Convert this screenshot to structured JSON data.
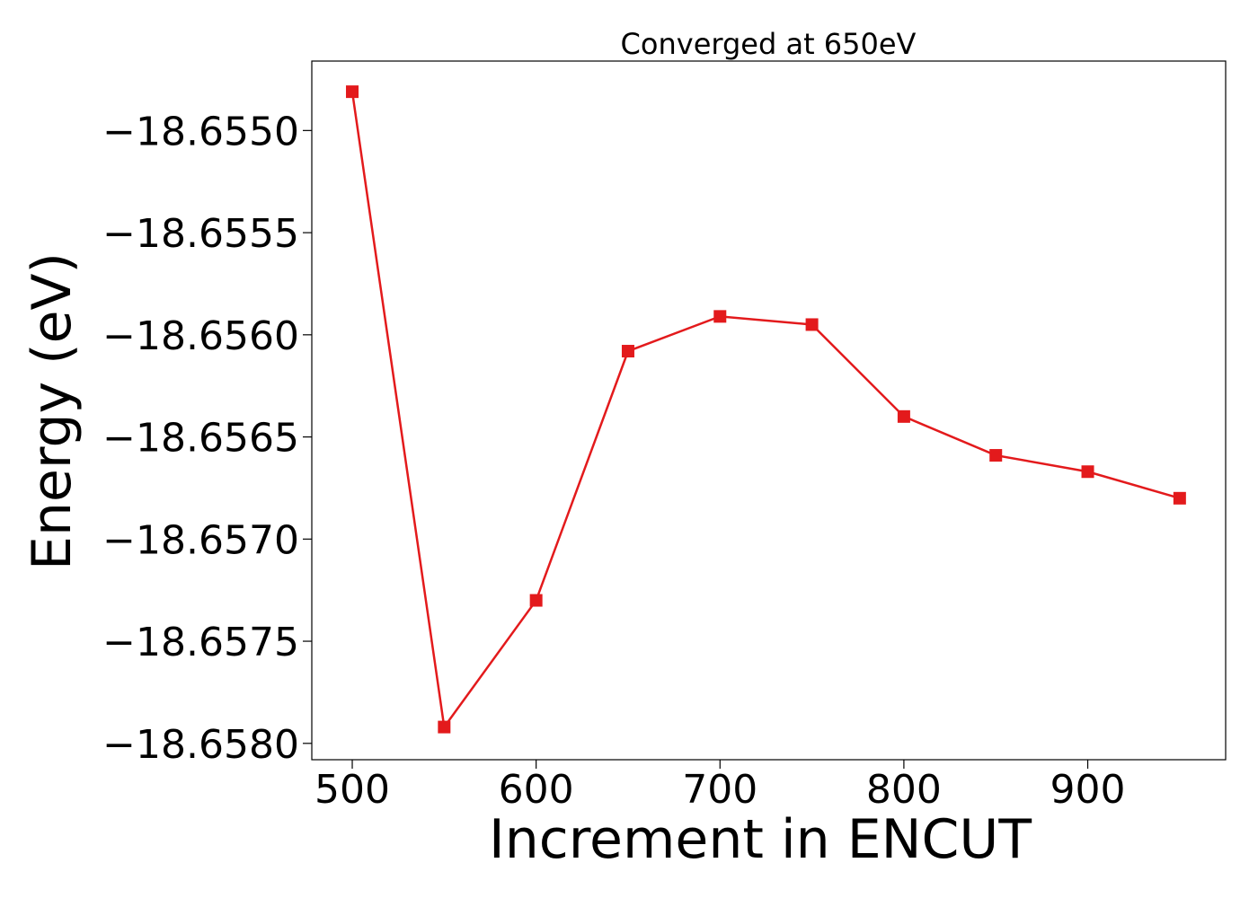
{
  "chart_data": {
    "type": "line",
    "title": "Converged at 650eV",
    "xlabel": "Increment in ENCUT",
    "ylabel": "Energy (eV)",
    "x": [
      500,
      550,
      600,
      650,
      700,
      750,
      800,
      850,
      900,
      950
    ],
    "series": [
      {
        "values": [
          -18.65481,
          -18.65792,
          -18.6573,
          -18.65608,
          -18.65591,
          -18.65595,
          -18.6564,
          -18.65659,
          -18.65667,
          -18.6568
        ],
        "color": "#e31a1c",
        "marker": "square"
      }
    ],
    "xticks": [
      500,
      600,
      700,
      800,
      900
    ],
    "xtick_labels": [
      "500",
      "600",
      "700",
      "800",
      "900"
    ],
    "yticks": [
      -18.655,
      -18.6555,
      -18.656,
      -18.6565,
      -18.657,
      -18.6575,
      -18.658
    ],
    "ytick_labels": [
      "−18.6550",
      "−18.6555",
      "−18.6560",
      "−18.6565",
      "−18.6570",
      "−18.6575",
      "−18.6580"
    ],
    "xlim": [
      478,
      975
    ],
    "ylim": [
      -18.65808,
      -18.65466
    ],
    "grid": false,
    "legend": "none"
  }
}
